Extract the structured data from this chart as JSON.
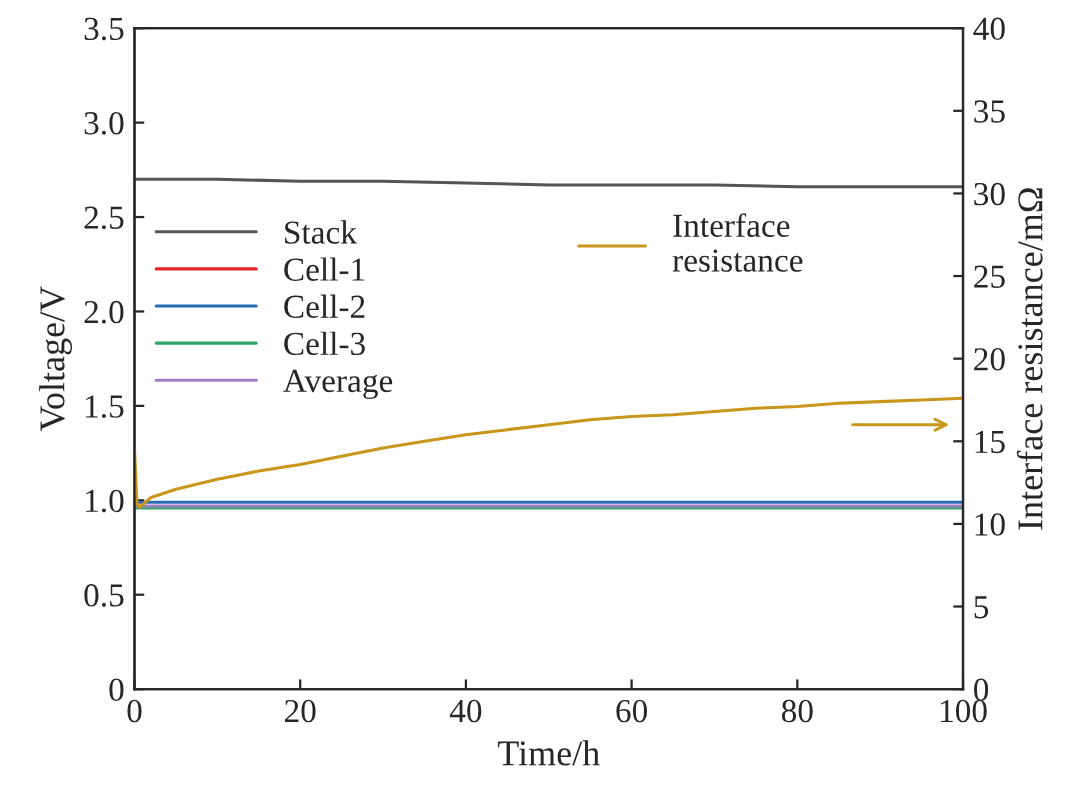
{
  "chart_data": {
    "type": "line",
    "xlabel": "Time/h",
    "ylabel": "Voltage/V",
    "y2label": "Interface resistance/mΩ",
    "xlim": [
      0,
      100
    ],
    "xticks": [
      0,
      20,
      40,
      60,
      80,
      100
    ],
    "ylim": [
      0,
      3.5
    ],
    "yticks": [
      0,
      {
        "value": 0.5,
        "label": "0.5"
      },
      {
        "value": 1,
        "label": "1.0"
      },
      {
        "value": 1.5,
        "label": "1.5"
      },
      {
        "value": 2,
        "label": "2.0"
      },
      {
        "value": 2.5,
        "label": "2.5"
      },
      {
        "value": 3,
        "label": "3.0"
      },
      {
        "value": 3.5,
        "label": "3.5"
      }
    ],
    "y2lim": [
      0,
      40
    ],
    "y2ticks": [
      0,
      5,
      10,
      15,
      20,
      25,
      30,
      35,
      40
    ],
    "legend": "top left",
    "grid": false,
    "series": [
      {
        "name": "Stack",
        "color": "#555555",
        "x": [
          0,
          10,
          20,
          30,
          40,
          50,
          60,
          70,
          80,
          90,
          100
        ],
        "values": [
          2.7,
          2.7,
          2.69,
          2.69,
          2.68,
          2.67,
          2.67,
          2.67,
          2.66,
          2.66,
          2.66
        ]
      },
      {
        "name": "Cell-1",
        "color": "#e8262a"
      },
      {
        "name": "Cell-2",
        "color": "#2a6bb5",
        "x": [
          0,
          20,
          40,
          60,
          80,
          100
        ],
        "values": [
          0.99,
          0.99,
          0.99,
          0.99,
          0.99,
          0.99
        ]
      },
      {
        "name": "Cell-3",
        "color": "#2ea66a",
        "x": [
          0,
          20,
          40,
          60,
          80,
          100
        ],
        "values": [
          0.96,
          0.96,
          0.96,
          0.96,
          0.96,
          0.96
        ]
      },
      {
        "name": "Average",
        "color": "#a07cc4",
        "x": [
          0,
          20,
          40,
          60,
          80,
          100
        ],
        "values": [
          0.97,
          0.97,
          0.97,
          0.97,
          0.97,
          0.97
        ]
      },
      {
        "name": "Interface\nresistance",
        "color": "#c8961a",
        "axis": "y2",
        "x": [
          0,
          0.3,
          0.6,
          2,
          5,
          10,
          15,
          20,
          25,
          30,
          35,
          40,
          45,
          50,
          55,
          60,
          65,
          70,
          75,
          80,
          85,
          90,
          95,
          100
        ],
        "values": [
          14.5,
          11.2,
          11.0,
          11.6,
          12.1,
          12.7,
          13.2,
          13.6,
          14.1,
          14.6,
          15.0,
          15.4,
          15.7,
          16.0,
          16.3,
          16.5,
          16.6,
          16.8,
          17.0,
          17.1,
          17.3,
          17.4,
          17.5,
          17.6
        ]
      }
    ]
  }
}
